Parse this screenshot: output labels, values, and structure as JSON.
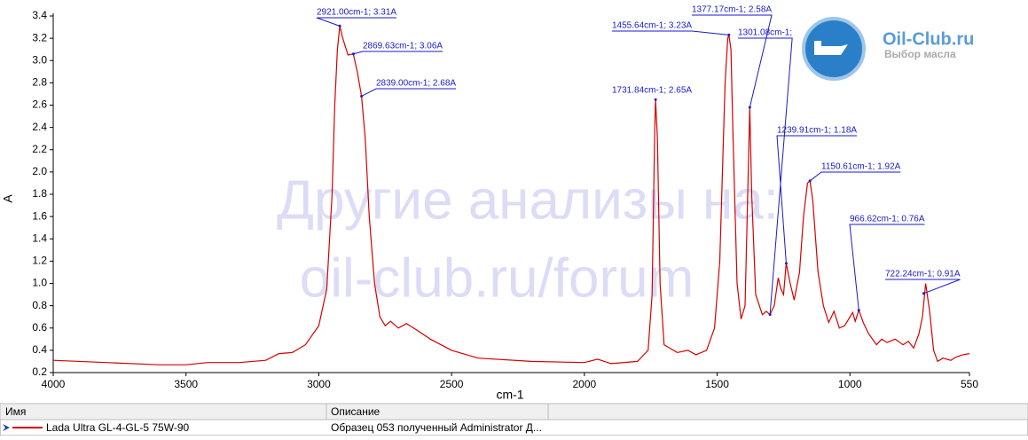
{
  "chart_data": {
    "type": "line",
    "xlabel": "cm-1",
    "ylabel": "A",
    "xlim": [
      4000,
      550
    ],
    "ylim": [
      0.2,
      3.4
    ],
    "xticks": [
      4000,
      3500,
      3000,
      2500,
      2000,
      1500,
      1000,
      550
    ],
    "yticks": [
      0.2,
      0.4,
      0.6,
      0.8,
      {
        "value": 1.0,
        "label": "1.0"
      },
      1.2,
      1.4,
      1.6,
      1.8,
      {
        "value": 2.0,
        "label": "2.0"
      },
      2.2,
      2.4,
      2.6,
      2.8,
      {
        "value": 3.0,
        "label": "3.0"
      },
      3.2,
      3.4
    ],
    "series": [
      {
        "color": "#d40000",
        "x": [
          4000,
          3800,
          3600,
          3500,
          3420,
          3300,
          3200,
          3150,
          3100,
          3050,
          3000,
          2970,
          2950,
          2940,
          2930,
          2921,
          2910,
          2890,
          2870,
          2855,
          2839,
          2825,
          2810,
          2790,
          2770,
          2750,
          2730,
          2700,
          2670,
          2630,
          2580,
          2500,
          2400,
          2200,
          2000,
          1950,
          1900,
          1800,
          1760,
          1745,
          1735,
          1731.84,
          1725,
          1715,
          1700,
          1650,
          1610,
          1580,
          1540,
          1510,
          1490,
          1470,
          1460,
          1455.64,
          1448,
          1440,
          1425,
          1410,
          1395,
          1385,
          1377.17,
          1370,
          1355,
          1330,
          1315,
          1301.08,
          1285,
          1270,
          1260,
          1250,
          1239.91,
          1225,
          1210,
          1190,
          1175,
          1160,
          1150.61,
          1140,
          1120,
          1100,
          1080,
          1070,
          1060,
          1040,
          1020,
          1000,
          990,
          980,
          966.62,
          950,
          930,
          900,
          880,
          860,
          830,
          800,
          780,
          760,
          740,
          727,
          715,
          700,
          685,
          670,
          650,
          620,
          600,
          575,
          550
        ],
        "values": [
          0.31,
          0.29,
          0.27,
          0.27,
          0.29,
          0.29,
          0.31,
          0.37,
          0.38,
          0.45,
          0.62,
          0.95,
          1.8,
          2.6,
          3.1,
          3.31,
          3.2,
          3.05,
          3.06,
          2.9,
          2.68,
          2.3,
          1.6,
          1.0,
          0.7,
          0.62,
          0.66,
          0.6,
          0.64,
          0.58,
          0.5,
          0.4,
          0.33,
          0.3,
          0.29,
          0.32,
          0.28,
          0.3,
          0.4,
          0.9,
          2.4,
          2.65,
          2.3,
          1.0,
          0.45,
          0.38,
          0.4,
          0.36,
          0.4,
          0.6,
          1.2,
          2.8,
          3.2,
          3.23,
          3.1,
          2.3,
          1.0,
          0.68,
          0.8,
          1.8,
          2.58,
          1.8,
          0.9,
          0.72,
          0.75,
          0.72,
          0.8,
          1.05,
          0.95,
          0.9,
          1.18,
          1.0,
          0.85,
          1.1,
          1.6,
          1.9,
          1.92,
          1.75,
          1.1,
          0.8,
          0.65,
          0.7,
          0.75,
          0.6,
          0.62,
          0.7,
          0.74,
          0.66,
          0.76,
          0.65,
          0.55,
          0.45,
          0.5,
          0.47,
          0.5,
          0.45,
          0.48,
          0.42,
          0.55,
          0.7,
          1.0,
          0.75,
          0.4,
          0.3,
          0.33,
          0.31,
          0.34,
          0.36,
          0.37
        ]
      }
    ],
    "annotations": [
      {
        "label": "2921.00cm-1; 3.31A",
        "x": 2921.0,
        "y": 3.31
      },
      {
        "label": "2869.63cm-1; 3.06A",
        "x": 2869.63,
        "y": 3.06
      },
      {
        "label": "2839.00cm-1; 2.68A",
        "x": 2839.0,
        "y": 2.68
      },
      {
        "label": "1731.84cm-1; 2.65A",
        "x": 1731.84,
        "y": 2.65
      },
      {
        "label": "1455.64cm-1; 3.23A",
        "x": 1455.64,
        "y": 3.23
      },
      {
        "label": "1377.17cm-1; 2.58A",
        "x": 1377.17,
        "y": 2.58
      },
      {
        "label": "1301.08cm-1;",
        "x": 1301.08,
        "y": 0.72
      },
      {
        "label": "1239.91cm-1; 1.18A",
        "x": 1239.91,
        "y": 1.18
      },
      {
        "label": "1150.61cm-1; 1.92A",
        "x": 1150.61,
        "y": 1.92
      },
      {
        "label": "966.62cm-1; 0.76A",
        "x": 966.62,
        "y": 0.76
      },
      {
        "label": "722.24cm-1; 0.91A",
        "x": 722.24,
        "y": 0.91
      }
    ]
  },
  "watermark": [
    "Другие анализы на:",
    "oil-club.ru/forum"
  ],
  "logo": {
    "title": "Oil-Club.ru",
    "subtitle": "Выбор масла"
  },
  "table": {
    "columns": [
      "Имя",
      "Описание"
    ],
    "rows": [
      [
        "Lada Ultra GL-4-GL-5 75W-90",
        "Образец 053 полученный Administrator Д..."
      ]
    ]
  }
}
